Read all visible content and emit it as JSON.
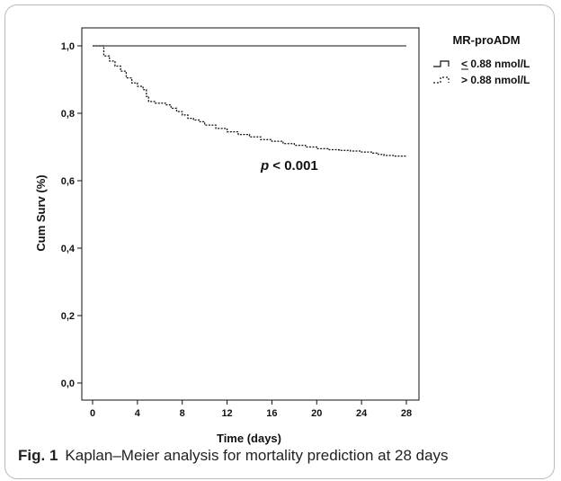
{
  "chart_data": {
    "type": "line",
    "ylabel": "Cum Surv (%)",
    "xlabel": "Time (days)",
    "xlim": [
      0,
      28
    ],
    "ylim": [
      0,
      1
    ],
    "xticks": [
      "0",
      "4",
      "8",
      "12",
      "16",
      "20",
      "24",
      "28"
    ],
    "yticks": [
      "0,0",
      "0,2",
      "0,4",
      "0,6",
      "0,8",
      "1,0"
    ],
    "annotation": {
      "italic": "p",
      "rest": " < 0.001",
      "x": 15,
      "y": 0.632
    },
    "legend": {
      "title": "MR-proADM",
      "placement": "top-right"
    },
    "series": [
      {
        "name": "< 0.88 nmol/L",
        "style": "solid",
        "x": [
          0,
          28
        ],
        "y": [
          1.0,
          1.0
        ]
      },
      {
        "name": "> 0.88 nmol/L",
        "style": "dashed",
        "x": [
          0,
          0.8,
          1.0,
          1.5,
          2.0,
          2.5,
          3.0,
          3.5,
          4.0,
          4.5,
          4.8,
          5.0,
          5.6,
          6.5,
          7.0,
          7.5,
          8.0,
          8.5,
          9.0,
          9.5,
          10.0,
          11.0,
          12.0,
          13.0,
          14.0,
          15.0,
          16.0,
          17.0,
          18.0,
          19.0,
          20.0,
          21.0,
          22.0,
          23.0,
          24.0,
          25.0,
          25.5,
          26.0,
          27.0,
          28.0
        ],
        "y": [
          1.0,
          1.0,
          0.97,
          0.955,
          0.94,
          0.925,
          0.905,
          0.89,
          0.88,
          0.87,
          0.85,
          0.835,
          0.83,
          0.825,
          0.815,
          0.805,
          0.795,
          0.785,
          0.78,
          0.775,
          0.765,
          0.755,
          0.745,
          0.737,
          0.73,
          0.722,
          0.717,
          0.71,
          0.705,
          0.7,
          0.695,
          0.692,
          0.69,
          0.688,
          0.685,
          0.682,
          0.678,
          0.675,
          0.673,
          0.673
        ]
      }
    ]
  },
  "caption": {
    "label": "Fig. 1",
    "text": "Kaplan–Meier analysis for mortality prediction at 28 days"
  }
}
